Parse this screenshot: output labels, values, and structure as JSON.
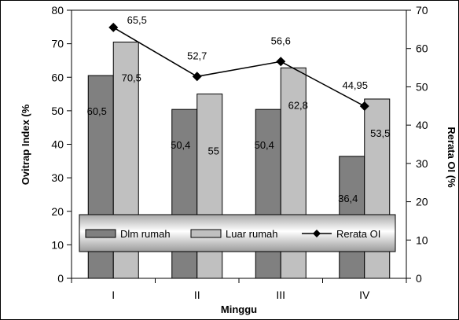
{
  "chart_data": {
    "type": "bar",
    "categories": [
      "I",
      "II",
      "III",
      "IV"
    ],
    "series": [
      {
        "name": "Dlm rumah",
        "kind": "bar",
        "axis": "left",
        "color": "#808080",
        "values": [
          60.5,
          50.4,
          50.4,
          36.4
        ],
        "labels": [
          "60,5",
          "50,4",
          "50,4",
          "36,4"
        ]
      },
      {
        "name": "Luar rumah",
        "kind": "bar",
        "axis": "left",
        "color": "#c0c0c0",
        "values": [
          70.5,
          55,
          62.8,
          53.5
        ],
        "labels": [
          "70,5",
          "55",
          "62,8",
          "53,5"
        ]
      },
      {
        "name": "Rerata OI",
        "kind": "line",
        "axis": "right",
        "color": "#000000",
        "marker": "diamond",
        "values": [
          65.5,
          52.7,
          56.6,
          44.95
        ],
        "labels": [
          "65,5",
          "52,7",
          "56,6",
          "44,95"
        ]
      }
    ],
    "xlabel": "Minggu",
    "ylabel": "Ovitrap Index (%",
    "y2label": "Rerata OI (%",
    "ylim": [
      0,
      80
    ],
    "y2lim": [
      0,
      70
    ],
    "yticks": [
      0,
      10,
      20,
      30,
      40,
      50,
      60,
      70,
      80
    ],
    "y2ticks": [
      0,
      10,
      20,
      30,
      40,
      50,
      60,
      70
    ],
    "grid": false,
    "legend_position": "bottom-center, overlapping plot"
  }
}
